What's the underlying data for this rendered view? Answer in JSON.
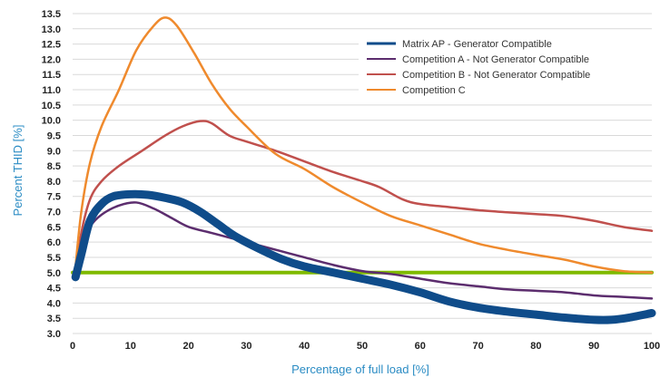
{
  "chart_data": {
    "type": "line",
    "xlabel": "Percentage of full load [%]",
    "ylabel": "Percent THID [%]",
    "xlim": [
      0,
      100
    ],
    "ylim": [
      3.0,
      13.5
    ],
    "x_ticks": [
      "0",
      "10",
      "20",
      "30",
      "40",
      "50",
      "60",
      "70",
      "80",
      "90",
      "100"
    ],
    "y_ticks": [
      "3.0",
      "3.5",
      "4.0",
      "4.5",
      "5.0",
      "5.5",
      "6.0",
      "6.5",
      "7.0",
      "7.5",
      "8.0",
      "8.5",
      "9.0",
      "9.5",
      "10.0",
      "10.5",
      "11.0",
      "11.5",
      "12.0",
      "12.5",
      "13.0",
      "13.5"
    ],
    "grid": "horizontal",
    "legend_position": "top-right",
    "series": [
      {
        "name": "Matrix AP - Generator Compatible",
        "color": "#0f4c8a",
        "points": [
          [
            0.5,
            4.85
          ],
          [
            1.5,
            5.6
          ],
          [
            3,
            6.7
          ],
          [
            5,
            7.25
          ],
          [
            7,
            7.5
          ],
          [
            10,
            7.57
          ],
          [
            13,
            7.55
          ],
          [
            16,
            7.45
          ],
          [
            19,
            7.3
          ],
          [
            22,
            7.0
          ],
          [
            25,
            6.6
          ],
          [
            28,
            6.2
          ],
          [
            32,
            5.8
          ],
          [
            36,
            5.45
          ],
          [
            40,
            5.2
          ],
          [
            45,
            5.0
          ],
          [
            50,
            4.8
          ],
          [
            55,
            4.6
          ],
          [
            60,
            4.35
          ],
          [
            65,
            4.05
          ],
          [
            70,
            3.85
          ],
          [
            75,
            3.72
          ],
          [
            80,
            3.62
          ],
          [
            85,
            3.52
          ],
          [
            90,
            3.45
          ],
          [
            93,
            3.45
          ],
          [
            96,
            3.52
          ],
          [
            100,
            3.67
          ]
        ]
      },
      {
        "name": "Competition A - Not Generator Compatible",
        "color": "#5c2d6e",
        "points": [
          [
            0.5,
            4.9
          ],
          [
            1.5,
            5.8
          ],
          [
            3,
            6.5
          ],
          [
            5,
            6.9
          ],
          [
            8,
            7.2
          ],
          [
            11,
            7.3
          ],
          [
            14,
            7.1
          ],
          [
            17,
            6.8
          ],
          [
            20,
            6.5
          ],
          [
            24,
            6.3
          ],
          [
            28,
            6.1
          ],
          [
            32,
            5.9
          ],
          [
            36,
            5.7
          ],
          [
            40,
            5.5
          ],
          [
            45,
            5.25
          ],
          [
            50,
            5.05
          ],
          [
            55,
            4.95
          ],
          [
            60,
            4.8
          ],
          [
            65,
            4.65
          ],
          [
            70,
            4.55
          ],
          [
            75,
            4.45
          ],
          [
            80,
            4.4
          ],
          [
            85,
            4.35
          ],
          [
            90,
            4.25
          ],
          [
            95,
            4.2
          ],
          [
            100,
            4.15
          ]
        ]
      },
      {
        "name": "Competition B - Not Generator Compatible",
        "color": "#c0504d",
        "points": [
          [
            0.5,
            5.0
          ],
          [
            1.5,
            6.3
          ],
          [
            3,
            7.4
          ],
          [
            5,
            8.0
          ],
          [
            8,
            8.5
          ],
          [
            12,
            9.0
          ],
          [
            16,
            9.5
          ],
          [
            19,
            9.8
          ],
          [
            22,
            9.97
          ],
          [
            24,
            9.9
          ],
          [
            27,
            9.5
          ],
          [
            30,
            9.3
          ],
          [
            35,
            9.0
          ],
          [
            40,
            8.65
          ],
          [
            45,
            8.3
          ],
          [
            50,
            8.0
          ],
          [
            53,
            7.8
          ],
          [
            57,
            7.4
          ],
          [
            60,
            7.25
          ],
          [
            65,
            7.15
          ],
          [
            70,
            7.05
          ],
          [
            75,
            6.98
          ],
          [
            80,
            6.92
          ],
          [
            85,
            6.85
          ],
          [
            90,
            6.7
          ],
          [
            95,
            6.5
          ],
          [
            100,
            6.37
          ]
        ]
      },
      {
        "name": "Competition C",
        "color": "#ef8a2d",
        "points": [
          [
            0.5,
            5.2
          ],
          [
            1.5,
            7.0
          ],
          [
            3,
            8.6
          ],
          [
            5,
            9.8
          ],
          [
            8,
            11.0
          ],
          [
            11,
            12.3
          ],
          [
            14,
            13.1
          ],
          [
            16,
            13.37
          ],
          [
            18,
            13.1
          ],
          [
            21,
            12.2
          ],
          [
            24,
            11.2
          ],
          [
            27,
            10.4
          ],
          [
            30,
            9.8
          ],
          [
            35,
            8.9
          ],
          [
            40,
            8.4
          ],
          [
            45,
            7.8
          ],
          [
            50,
            7.3
          ],
          [
            55,
            6.85
          ],
          [
            60,
            6.55
          ],
          [
            65,
            6.25
          ],
          [
            70,
            5.95
          ],
          [
            75,
            5.75
          ],
          [
            80,
            5.58
          ],
          [
            85,
            5.42
          ],
          [
            90,
            5.2
          ],
          [
            95,
            5.05
          ],
          [
            100,
            5.0
          ]
        ]
      },
      {
        "color": "#7fba00",
        "points": [
          [
            0,
            5.0
          ],
          [
            100,
            5.0
          ]
        ]
      }
    ]
  }
}
